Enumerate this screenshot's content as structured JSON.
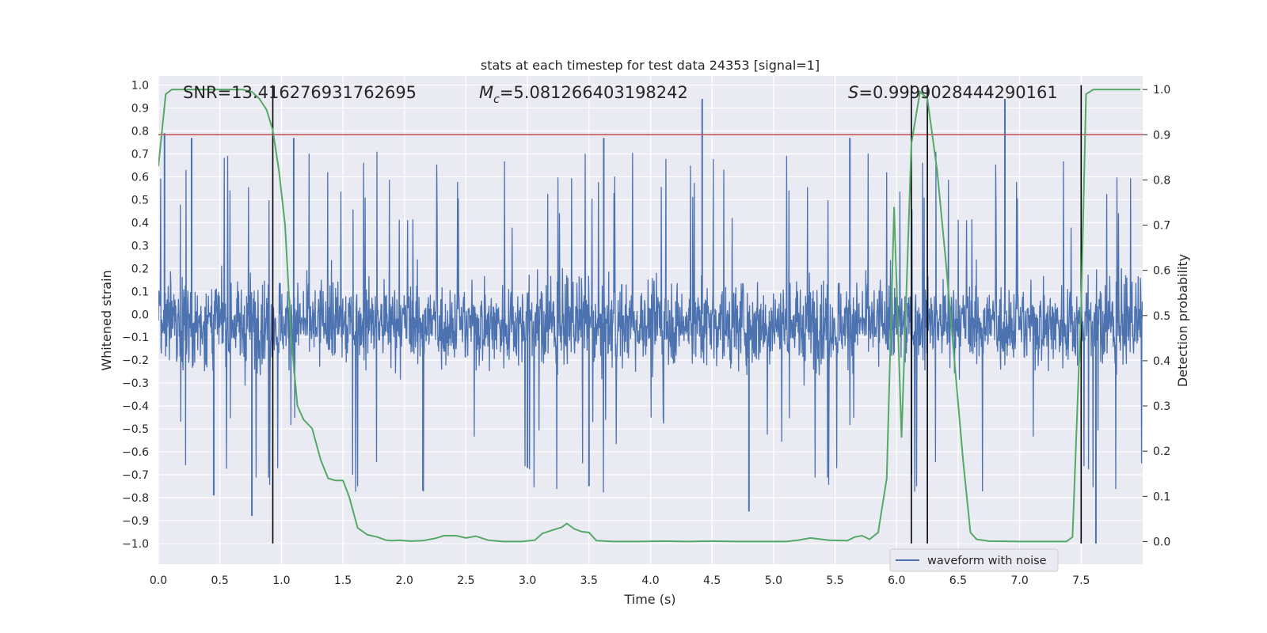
{
  "chart_data": {
    "type": "line",
    "title": "stats at each timestep for test data 24353 [signal=1]",
    "xlabel": "Time (s)",
    "ylabel_left": "Whitened strain",
    "ylabel_right": "Detection probability",
    "xlim": [
      0,
      8.0
    ],
    "ylim_left": [
      -1.09,
      1.04
    ],
    "ylim_right": [
      -0.05,
      1.03
    ],
    "xticks": [
      "0.0",
      "0.5",
      "1.0",
      "1.5",
      "2.0",
      "2.5",
      "3.0",
      "3.5",
      "4.0",
      "4.5",
      "5.0",
      "5.5",
      "6.0",
      "6.5",
      "7.0",
      "7.5"
    ],
    "xtick_values": [
      0,
      0.5,
      1.0,
      1.5,
      2.0,
      2.5,
      3.0,
      3.5,
      4.0,
      4.5,
      5.0,
      5.5,
      6.0,
      6.5,
      7.0,
      7.5
    ],
    "yticks_left": [
      "1.0",
      "0.9",
      "0.8",
      "0.7",
      "0.6",
      "0.5",
      "0.4",
      "0.3",
      "0.2",
      "0.1",
      "0.0",
      "−0.1",
      "−0.2",
      "−0.3",
      "−0.4",
      "−0.5",
      "−0.6",
      "−0.7",
      "−0.8",
      "−0.9",
      "−1.0"
    ],
    "ytick_values_left": [
      1.0,
      0.9,
      0.8,
      0.7,
      0.6,
      0.5,
      0.4,
      0.3,
      0.2,
      0.1,
      0.0,
      -0.1,
      -0.2,
      -0.3,
      -0.4,
      -0.5,
      -0.6,
      -0.7,
      -0.8,
      -0.9,
      -1.0
    ],
    "yticks_right": [
      "1.0",
      "0.9",
      "0.8",
      "0.7",
      "0.6",
      "0.5",
      "0.4",
      "0.3",
      "0.2",
      "0.1",
      "0.0"
    ],
    "ytick_values_right": [
      1.0,
      0.9,
      0.8,
      0.7,
      0.6,
      0.5,
      0.4,
      0.3,
      0.2,
      0.1,
      0.0
    ],
    "annotations": {
      "snr": "SNR=13.416276931762695",
      "mc_symbol": "M",
      "mc_sub": "c",
      "mc_value": "=5.081266403198242",
      "s_symbol": "S",
      "s_value": "=0.9999028444290161"
    },
    "threshold": {
      "value": 0.9,
      "axis": "right",
      "color": "#c44e52"
    },
    "vertical_lines": [
      0.93,
      6.12,
      6.25,
      7.5
    ],
    "vertical_line_range": [
      -1.0,
      1.0
    ],
    "legend": {
      "label": "waveform with noise",
      "placement": "lower-right"
    },
    "series": [
      {
        "name": "waveform with noise",
        "axis": "left",
        "color": "#4c72b0",
        "style": "dense noise trace, core band approx -0.45..0.37, peaks to ±1.0",
        "core_range": [
          -0.45,
          0.37
        ],
        "peaks": [
          {
            "x": 0.05,
            "y": 0.79
          },
          {
            "x": 0.27,
            "y": 0.77
          },
          {
            "x": 0.45,
            "y": -0.79
          },
          {
            "x": 0.76,
            "y": -0.88
          },
          {
            "x": 1.1,
            "y": 0.77
          },
          {
            "x": 2.15,
            "y": -0.77
          },
          {
            "x": 3.0,
            "y": -0.67
          },
          {
            "x": 3.5,
            "y": -0.75
          },
          {
            "x": 3.62,
            "y": 0.77
          },
          {
            "x": 4.42,
            "y": 0.94
          },
          {
            "x": 4.8,
            "y": -0.86
          },
          {
            "x": 5.62,
            "y": 0.77
          },
          {
            "x": 6.88,
            "y": 0.94
          },
          {
            "x": 7.62,
            "y": -1.0
          }
        ]
      },
      {
        "name": "detection probability",
        "axis": "right",
        "color": "#55a868",
        "x": [
          0.0,
          0.06,
          0.11,
          0.18,
          0.25,
          0.32,
          0.38,
          0.45,
          0.52,
          0.6,
          0.68,
          0.76,
          0.82,
          0.88,
          0.93,
          0.98,
          1.03,
          1.08,
          1.13,
          1.18,
          1.25,
          1.32,
          1.38,
          1.44,
          1.5,
          1.55,
          1.62,
          1.7,
          1.78,
          1.85,
          1.9,
          1.95,
          2.05,
          2.15,
          2.25,
          2.32,
          2.42,
          2.5,
          2.58,
          2.68,
          2.8,
          2.95,
          3.06,
          3.12,
          3.2,
          3.28,
          3.32,
          3.38,
          3.44,
          3.5,
          3.56,
          3.7,
          3.9,
          4.1,
          4.3,
          4.5,
          4.7,
          4.9,
          5.1,
          5.2,
          5.3,
          5.45,
          5.6,
          5.66,
          5.72,
          5.78,
          5.85,
          5.92,
          5.98,
          6.04,
          6.12,
          6.19,
          6.25,
          6.33,
          6.4,
          6.47,
          6.54,
          6.6,
          6.65,
          6.75,
          7.0,
          7.2,
          7.3,
          7.38,
          7.43,
          7.5,
          7.54,
          7.6,
          7.68,
          7.75,
          7.85,
          7.98
        ],
        "y": [
          0.83,
          0.99,
          1.0,
          1.0,
          1.0,
          1.0,
          1.0,
          1.0,
          1.0,
          1.0,
          1.0,
          0.995,
          0.98,
          0.955,
          0.91,
          0.82,
          0.7,
          0.45,
          0.3,
          0.27,
          0.25,
          0.18,
          0.14,
          0.135,
          0.135,
          0.1,
          0.03,
          0.015,
          0.01,
          0.003,
          0.002,
          0.003,
          0.001,
          0.002,
          0.007,
          0.013,
          0.013,
          0.008,
          0.012,
          0.003,
          0.0,
          0.0,
          0.003,
          0.018,
          0.025,
          0.032,
          0.04,
          0.028,
          0.022,
          0.02,
          0.002,
          0.0,
          0.0,
          0.001,
          0.0,
          0.001,
          0.0,
          0.0,
          0.0,
          0.003,
          0.008,
          0.003,
          0.002,
          0.01,
          0.013,
          0.005,
          0.02,
          0.14,
          0.74,
          0.23,
          0.88,
          0.995,
          0.98,
          0.82,
          0.62,
          0.4,
          0.18,
          0.02,
          0.005,
          0.001,
          0.0,
          0.0,
          0.0,
          0.0,
          0.01,
          0.52,
          0.99,
          1.0,
          1.0,
          1.0,
          1.0,
          1.0
        ]
      }
    ]
  }
}
